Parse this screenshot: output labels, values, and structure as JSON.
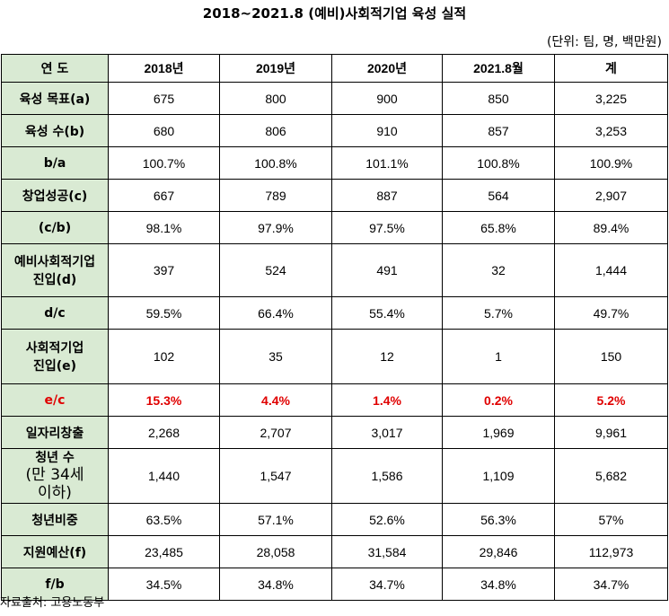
{
  "title": "2018~2021.8 (예비)사회적기업 육성 실적",
  "unit": "(단위: 팀, 명, 백만원)",
  "columns": [
    "연 도",
    "2018년",
    "2019년",
    "2020년",
    "2021.8월",
    "계"
  ],
  "rows": [
    {
      "label": "육성 목표(a)",
      "values": [
        "675",
        "800",
        "900",
        "850",
        "3,225"
      ]
    },
    {
      "label": "육성 수(b)",
      "values": [
        "680",
        "806",
        "910",
        "857",
        "3,253"
      ]
    },
    {
      "label": "b/a",
      "values": [
        "100.7%",
        "100.8%",
        "101.1%",
        "100.8%",
        "100.9%"
      ]
    },
    {
      "label": "창업성공(c)",
      "values": [
        "667",
        "789",
        "887",
        "564",
        "2,907"
      ]
    },
    {
      "label": "(c/b)",
      "values": [
        "98.1%",
        "97.9%",
        "97.5%",
        "65.8%",
        "89.4%"
      ]
    },
    {
      "label_line1": "예비사회적기업",
      "label_line2": "진입(d)",
      "values": [
        "397",
        "524",
        "491",
        "32",
        "1,444"
      ]
    },
    {
      "label": "d/c",
      "values": [
        "59.5%",
        "66.4%",
        "55.4%",
        "5.7%",
        "49.7%"
      ]
    },
    {
      "label_line1": "사회적기업",
      "label_line2": "진입(e)",
      "values": [
        "102",
        "35",
        "12",
        "1",
        "150"
      ]
    },
    {
      "label": "e/c",
      "values": [
        "15.3%",
        "4.4%",
        "1.4%",
        "0.2%",
        "5.2%"
      ]
    },
    {
      "label": "일자리창출",
      "values": [
        "2,268",
        "2,707",
        "3,017",
        "1,969",
        "9,961"
      ]
    },
    {
      "label_line1": "청년 수",
      "label_line2": "(만 34세",
      "label_line3": "이하)",
      "values": [
        "1,440",
        "1,547",
        "1,586",
        "1,109",
        "5,682"
      ]
    },
    {
      "label": "청년비중",
      "values": [
        "63.5%",
        "57.1%",
        "52.6%",
        "56.3%",
        "57%"
      ]
    },
    {
      "label": "지원예산(f)",
      "values": [
        "23,485",
        "28,058",
        "31,584",
        "29,846",
        "112,973"
      ]
    },
    {
      "label": "f/b",
      "values": [
        "34.5%",
        "34.8%",
        "34.7%",
        "34.8%",
        "34.7%"
      ]
    }
  ],
  "source": "자료출처: 고용노동부",
  "colors": {
    "header_bg": "#d9ead3",
    "highlight": "#e00000"
  }
}
